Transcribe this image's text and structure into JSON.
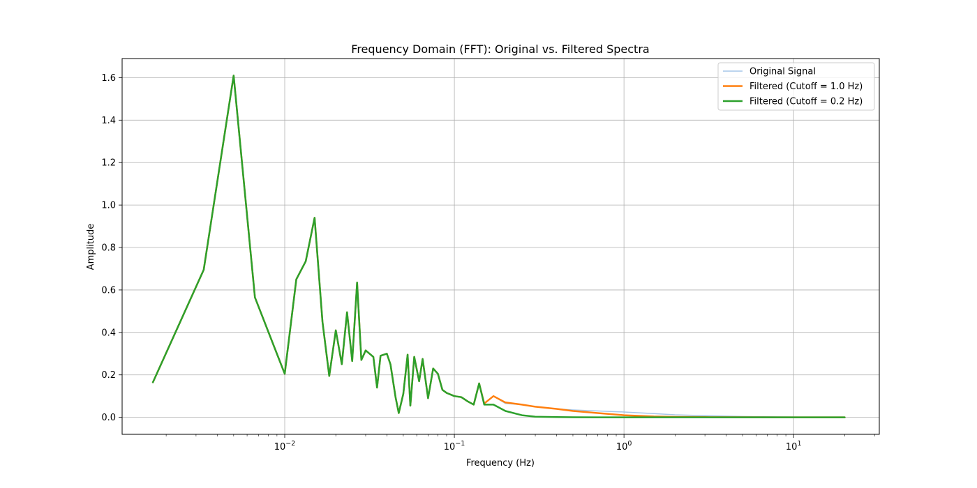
{
  "chart_data": {
    "type": "line",
    "title": "Frequency Domain (FFT): Original vs. Filtered Spectra",
    "xlabel": "Frequency (Hz)",
    "ylabel": "Amplitude",
    "x_scale": "log",
    "xlim": [
      0.0011,
      32
    ],
    "ylim": [
      -0.08,
      1.69
    ],
    "x_ticks": [
      {
        "value": 0.01,
        "base": "10",
        "exp": "−2"
      },
      {
        "value": 0.1,
        "base": "10",
        "exp": "−1"
      },
      {
        "value": 1,
        "base": "10",
        "exp": "0"
      },
      {
        "value": 10,
        "base": "10",
        "exp": "1"
      }
    ],
    "y_ticks": [
      "0.0",
      "0.2",
      "0.4",
      "0.6",
      "0.8",
      "1.0",
      "1.2",
      "1.4",
      "1.6"
    ],
    "grid": true,
    "legend_position": "top-right",
    "series": [
      {
        "name": "Original Signal",
        "color": "#a6c6e8",
        "x": [
          0.00167,
          0.00333,
          0.005,
          0.00667,
          0.01,
          0.0117,
          0.0133,
          0.015,
          0.0167,
          0.0183,
          0.02,
          0.0217,
          0.0233,
          0.025,
          0.0267,
          0.0283,
          0.03,
          0.0333,
          0.035,
          0.0367,
          0.04,
          0.042,
          0.045,
          0.047,
          0.05,
          0.053,
          0.055,
          0.058,
          0.062,
          0.065,
          0.07,
          0.075,
          0.08,
          0.085,
          0.09,
          0.1,
          0.11,
          0.12,
          0.13,
          0.14,
          0.15,
          0.17,
          0.2,
          0.25,
          0.3,
          0.4,
          0.5,
          0.7,
          1.0,
          1.5,
          2.0,
          3.0,
          5.0,
          8.0,
          12.0,
          20.0
        ],
        "y": [
          0.165,
          0.695,
          1.61,
          0.565,
          0.205,
          0.65,
          0.735,
          0.94,
          0.45,
          0.195,
          0.41,
          0.25,
          0.495,
          0.265,
          0.635,
          0.27,
          0.315,
          0.285,
          0.14,
          0.29,
          0.3,
          0.25,
          0.095,
          0.02,
          0.11,
          0.295,
          0.055,
          0.285,
          0.17,
          0.275,
          0.09,
          0.23,
          0.205,
          0.13,
          0.115,
          0.1,
          0.095,
          0.075,
          0.06,
          0.16,
          0.065,
          0.1,
          0.065,
          0.06,
          0.05,
          0.04,
          0.035,
          0.03,
          0.025,
          0.018,
          0.012,
          0.008,
          0.004,
          0.002,
          0.001,
          0.001
        ]
      },
      {
        "name": "Filtered (Cutoff = 1.0 Hz)",
        "color": "#ff7f0e",
        "x": [
          0.00167,
          0.00333,
          0.005,
          0.00667,
          0.01,
          0.0117,
          0.0133,
          0.015,
          0.0167,
          0.0183,
          0.02,
          0.0217,
          0.0233,
          0.025,
          0.0267,
          0.0283,
          0.03,
          0.0333,
          0.035,
          0.0367,
          0.04,
          0.042,
          0.045,
          0.047,
          0.05,
          0.053,
          0.055,
          0.058,
          0.062,
          0.065,
          0.07,
          0.075,
          0.08,
          0.085,
          0.09,
          0.1,
          0.11,
          0.12,
          0.13,
          0.14,
          0.15,
          0.17,
          0.2,
          0.25,
          0.3,
          0.4,
          0.5,
          0.7,
          1.0,
          1.5,
          2.0,
          3.0,
          5.0,
          8.0,
          12.0,
          20.0
        ],
        "y": [
          0.165,
          0.695,
          1.61,
          0.565,
          0.205,
          0.65,
          0.735,
          0.94,
          0.45,
          0.195,
          0.41,
          0.25,
          0.495,
          0.265,
          0.635,
          0.27,
          0.315,
          0.285,
          0.14,
          0.29,
          0.3,
          0.25,
          0.095,
          0.02,
          0.11,
          0.295,
          0.055,
          0.285,
          0.17,
          0.275,
          0.09,
          0.23,
          0.205,
          0.13,
          0.115,
          0.1,
          0.095,
          0.075,
          0.06,
          0.16,
          0.065,
          0.1,
          0.07,
          0.06,
          0.05,
          0.04,
          0.03,
          0.02,
          0.01,
          0.004,
          0.002,
          0.001,
          0.0005,
          0.0002,
          0.0001,
          0.0
        ]
      },
      {
        "name": "Filtered (Cutoff = 0.2 Hz)",
        "color": "#2ca02c",
        "x": [
          0.00167,
          0.00333,
          0.005,
          0.00667,
          0.01,
          0.0117,
          0.0133,
          0.015,
          0.0167,
          0.0183,
          0.02,
          0.0217,
          0.0233,
          0.025,
          0.0267,
          0.0283,
          0.03,
          0.0333,
          0.035,
          0.0367,
          0.04,
          0.042,
          0.045,
          0.047,
          0.05,
          0.053,
          0.055,
          0.058,
          0.062,
          0.065,
          0.07,
          0.075,
          0.08,
          0.085,
          0.09,
          0.1,
          0.11,
          0.12,
          0.13,
          0.14,
          0.15,
          0.17,
          0.2,
          0.25,
          0.3,
          0.4,
          0.5,
          0.7,
          1.0,
          1.5,
          2.0,
          3.0,
          5.0,
          8.0,
          12.0,
          20.0
        ],
        "y": [
          0.165,
          0.695,
          1.61,
          0.565,
          0.205,
          0.65,
          0.735,
          0.94,
          0.45,
          0.195,
          0.41,
          0.25,
          0.495,
          0.265,
          0.635,
          0.27,
          0.315,
          0.285,
          0.14,
          0.29,
          0.3,
          0.25,
          0.095,
          0.02,
          0.11,
          0.295,
          0.055,
          0.285,
          0.17,
          0.275,
          0.09,
          0.23,
          0.205,
          0.13,
          0.115,
          0.1,
          0.095,
          0.075,
          0.06,
          0.16,
          0.06,
          0.06,
          0.03,
          0.01,
          0.003,
          0.001,
          0.0005,
          0.0002,
          0.0001,
          0.0,
          0.0,
          0.0,
          0.0,
          0.0,
          0.0,
          0.0
        ]
      }
    ]
  }
}
